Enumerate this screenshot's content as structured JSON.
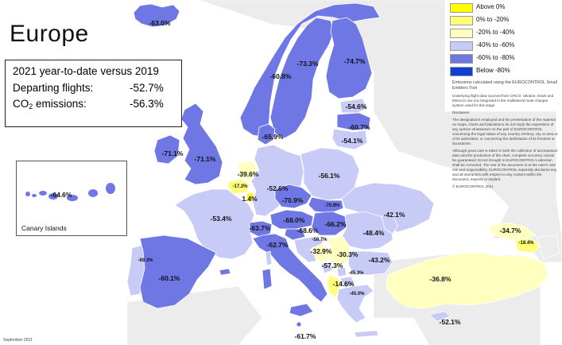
{
  "title": "Europe",
  "stats": {
    "header": "2021 year-to-date versus 2019",
    "departing_label": "Departing flights:",
    "departing_value": "-52.7%",
    "co2_label_prefix": "CO",
    "co2_label_sub": "2",
    "co2_label_suffix": " emissions:",
    "co2_value": "-56.3%"
  },
  "canary": {
    "label": "Canary Islands",
    "value": "-64.6%"
  },
  "legend": [
    {
      "label": "Above 0%",
      "color": "#ffff00"
    },
    {
      "label": "0% to -20%",
      "color": "#ffff7a"
    },
    {
      "label": "-20% to -40%",
      "color": "#ffffc0"
    },
    {
      "label": "-40% to -60%",
      "color": "#c8cbf5"
    },
    {
      "label": "-60% to -80%",
      "color": "#6f77e5"
    },
    {
      "label": "Below -80%",
      "color": "#1040d0"
    }
  ],
  "notes": {
    "line1": "Emissions calculated using the EUROCONTROL Small Emitters Tool",
    "line2": "Underlying flight data sourced from CRCO. Ukraine, Israel and Morocco are not integrated in the multilateral route charges system used for this stage",
    "disclaimer_title": "Disclaimer",
    "disclaimer": "The designations employed and the presentation of the material on maps, charts and tabulations do not imply the expression of any opinion whatsoever on the part of EUROCONTROL concerning the legal status of any country, territory, city or area or of its authorities, or concerning the delimitation of its frontiers or boundaries.",
    "extra": "Although great care is taken in both the collection of aeronautical data and the production of the chart, complete accuracy cannot be guaranteed. Errors brought to EUROCONTROL's attention shall be corrected. The use of the document is at the user's sole risk and responsibility. EUROCONTROL expressly disclaims any and all warranties with respect to any content within the document, express or implied.",
    "copyright": "© EUROCONTROL 2021"
  },
  "footer": "September 2021",
  "regions": [
    {
      "name": "Iceland",
      "value": "-63.0%"
    },
    {
      "name": "Norway",
      "value": "-60.8%"
    },
    {
      "name": "Sweden",
      "value": "-73.3%"
    },
    {
      "name": "Finland",
      "value": "-74.7%"
    },
    {
      "name": "Estonia",
      "value": "-54.6%"
    },
    {
      "name": "Latvia",
      "value": "-60.7%"
    },
    {
      "name": "Lithuania",
      "value": "-54.1%"
    },
    {
      "name": "Denmark",
      "value": "-65.9%"
    },
    {
      "name": "Ireland",
      "value": "-71.1%"
    },
    {
      "name": "United Kingdom",
      "value": "-71.1%"
    },
    {
      "name": "Netherlands",
      "value": "-39.6%"
    },
    {
      "name": "Belgium",
      "value": "-17.2%"
    },
    {
      "name": "Luxembourg",
      "value": "1.4%"
    },
    {
      "name": "Germany",
      "value": "-52.6%"
    },
    {
      "name": "Poland",
      "value": "-56.1%"
    },
    {
      "name": "Czechia",
      "value": "-70.9%"
    },
    {
      "name": "Slovakia",
      "value": "-70.9%"
    },
    {
      "name": "Ukraine",
      "value": "-42.1%"
    },
    {
      "name": "France",
      "value": "-53.4%"
    },
    {
      "name": "Switzerland",
      "value": "-63.7%"
    },
    {
      "name": "Austria",
      "value": "-68.0%"
    },
    {
      "name": "Hungary",
      "value": "-66.2%"
    },
    {
      "name": "Slovenia",
      "value": "-68.6%"
    },
    {
      "name": "Moldova",
      "value": "-48.4%"
    },
    {
      "name": "Croatia",
      "value": "-59.7%"
    },
    {
      "name": "Bosnia and Herzegovina",
      "value": "-32.9%"
    },
    {
      "name": "Serbia",
      "value": "-30.3%"
    },
    {
      "name": "Montenegro",
      "value": "-57.3%"
    },
    {
      "name": "Kosovo",
      "value": "-45.3%"
    },
    {
      "name": "Albania",
      "value": "-14.6%"
    },
    {
      "name": "North Macedonia",
      "value": "-45.0%"
    },
    {
      "name": "Romania",
      "value": "-43.2%"
    },
    {
      "name": "Bulgaria",
      "value": "-43.2%"
    },
    {
      "name": "Italy",
      "value": "-62.7%"
    },
    {
      "name": "Portugal",
      "value": "-69.3%"
    },
    {
      "name": "Spain",
      "value": "-60.1%"
    },
    {
      "name": "Malta",
      "value": "-61.7%"
    },
    {
      "name": "Greece",
      "value": "-45.0%"
    },
    {
      "name": "Turkey",
      "value": "-36.8%"
    },
    {
      "name": "Cyprus",
      "value": "-52.1%"
    },
    {
      "name": "Georgia",
      "value": "-34.7%"
    },
    {
      "name": "Armenia",
      "value": "-18.4%"
    }
  ]
}
